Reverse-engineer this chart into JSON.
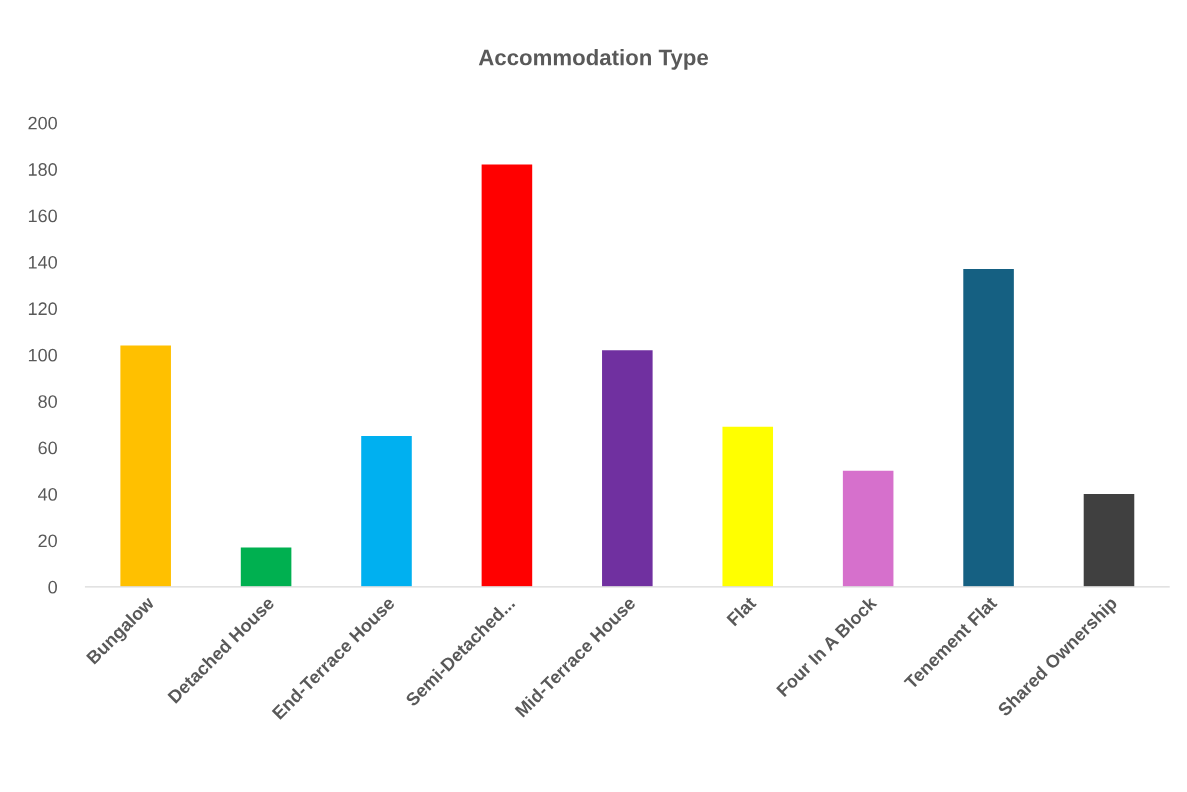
{
  "chart_data": {
    "type": "bar",
    "title": "Accommodation Type",
    "categories": [
      "Bungalow",
      "Detached House",
      "End-Terrace House",
      "Semi-Detached...",
      "Mid-Terrace House",
      "Flat",
      "Four In A Block",
      "Tenement Flat",
      "Shared Ownership"
    ],
    "values": [
      104,
      17,
      65,
      182,
      102,
      69,
      50,
      137,
      40
    ],
    "colors": [
      "#ffc000",
      "#00b050",
      "#00b0f0",
      "#ff0000",
      "#7030a0",
      "#ffff00",
      "#d670cc",
      "#156082",
      "#404040"
    ],
    "ylim": [
      0,
      200
    ],
    "yticks": [
      0,
      20,
      40,
      60,
      80,
      100,
      120,
      140,
      160,
      180,
      200
    ],
    "grid": false,
    "legend": false
  }
}
